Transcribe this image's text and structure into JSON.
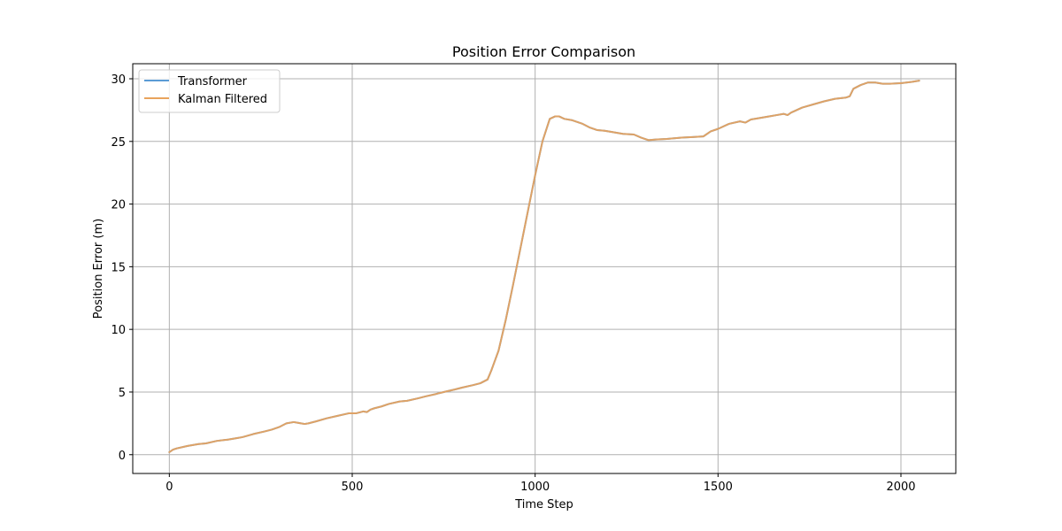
{
  "chart_data": {
    "type": "line",
    "title": "Position Error Comparison",
    "xlabel": "Time Step",
    "ylabel": "Position Error (m)",
    "xlim": [
      -100,
      2150
    ],
    "ylim": [
      -1.5,
      31.2
    ],
    "xticks": [
      0,
      500,
      1000,
      1500,
      2000
    ],
    "yticks": [
      0,
      5,
      10,
      15,
      20,
      25,
      30
    ],
    "grid": true,
    "legend_position": "top-left",
    "series": [
      {
        "name": "Transformer",
        "color": "#5b9bd5",
        "x": [
          0,
          10,
          20,
          50,
          80,
          100,
          130,
          160,
          180,
          200,
          230,
          260,
          280,
          300,
          320,
          340,
          350,
          360,
          370,
          380,
          400,
          430,
          460,
          490,
          510,
          530,
          540,
          550,
          560,
          580,
          600,
          630,
          650,
          680,
          700,
          730,
          750,
          780,
          800,
          830,
          850,
          870,
          880,
          890,
          900,
          920,
          940,
          960,
          980,
          1000,
          1020,
          1040,
          1055,
          1065,
          1080,
          1100,
          1130,
          1150,
          1170,
          1190,
          1210,
          1240,
          1270,
          1290,
          1310,
          1330,
          1360,
          1400,
          1430,
          1460,
          1480,
          1500,
          1530,
          1560,
          1575,
          1590,
          1610,
          1640,
          1660,
          1680,
          1690,
          1700,
          1730,
          1760,
          1790,
          1820,
          1850,
          1860,
          1870,
          1890,
          1910,
          1930,
          1950,
          1970,
          2000,
          2030,
          2050
        ],
        "values": [
          0.2,
          0.4,
          0.5,
          0.7,
          0.85,
          0.9,
          1.1,
          1.2,
          1.3,
          1.4,
          1.65,
          1.85,
          2.0,
          2.2,
          2.5,
          2.6,
          2.55,
          2.5,
          2.45,
          2.5,
          2.65,
          2.9,
          3.1,
          3.3,
          3.3,
          3.45,
          3.4,
          3.6,
          3.7,
          3.85,
          4.05,
          4.25,
          4.3,
          4.5,
          4.65,
          4.85,
          5.0,
          5.2,
          5.35,
          5.55,
          5.7,
          6.0,
          6.7,
          7.5,
          8.3,
          10.8,
          13.6,
          16.5,
          19.4,
          22.3,
          25.0,
          26.8,
          27.0,
          27.0,
          26.8,
          26.7,
          26.4,
          26.1,
          25.9,
          25.85,
          25.75,
          25.6,
          25.55,
          25.3,
          25.1,
          25.15,
          25.2,
          25.3,
          25.35,
          25.4,
          25.8,
          26.0,
          26.4,
          26.6,
          26.5,
          26.75,
          26.85,
          27.0,
          27.1,
          27.2,
          27.1,
          27.3,
          27.7,
          27.95,
          28.2,
          28.4,
          28.5,
          28.6,
          29.2,
          29.5,
          29.7,
          29.7,
          29.6,
          29.6,
          29.65,
          29.75,
          29.85
        ]
      },
      {
        "name": "Kalman Filtered",
        "color": "#e9a35c",
        "x": [
          0,
          10,
          20,
          50,
          80,
          100,
          130,
          160,
          180,
          200,
          230,
          260,
          280,
          300,
          320,
          340,
          350,
          360,
          370,
          380,
          400,
          430,
          460,
          490,
          510,
          530,
          540,
          550,
          560,
          580,
          600,
          630,
          650,
          680,
          700,
          730,
          750,
          780,
          800,
          830,
          850,
          870,
          880,
          890,
          900,
          920,
          940,
          960,
          980,
          1000,
          1020,
          1040,
          1055,
          1065,
          1080,
          1100,
          1130,
          1150,
          1170,
          1190,
          1210,
          1240,
          1270,
          1290,
          1310,
          1330,
          1360,
          1400,
          1430,
          1460,
          1480,
          1500,
          1530,
          1560,
          1575,
          1590,
          1610,
          1640,
          1660,
          1680,
          1690,
          1700,
          1730,
          1760,
          1790,
          1820,
          1850,
          1860,
          1870,
          1890,
          1910,
          1930,
          1950,
          1970,
          2000,
          2030,
          2050
        ],
        "values": [
          0.2,
          0.4,
          0.5,
          0.7,
          0.85,
          0.9,
          1.1,
          1.2,
          1.3,
          1.4,
          1.65,
          1.85,
          2.0,
          2.2,
          2.5,
          2.6,
          2.55,
          2.5,
          2.45,
          2.5,
          2.65,
          2.9,
          3.1,
          3.3,
          3.3,
          3.45,
          3.4,
          3.6,
          3.7,
          3.85,
          4.05,
          4.25,
          4.3,
          4.5,
          4.65,
          4.85,
          5.0,
          5.2,
          5.35,
          5.55,
          5.7,
          6.0,
          6.7,
          7.5,
          8.3,
          10.8,
          13.6,
          16.5,
          19.4,
          22.3,
          25.0,
          26.8,
          27.0,
          27.0,
          26.8,
          26.7,
          26.4,
          26.1,
          25.9,
          25.85,
          25.75,
          25.6,
          25.55,
          25.3,
          25.1,
          25.15,
          25.2,
          25.3,
          25.35,
          25.4,
          25.8,
          26.0,
          26.4,
          26.6,
          26.5,
          26.75,
          26.85,
          27.0,
          27.1,
          27.2,
          27.1,
          27.3,
          27.7,
          27.95,
          28.2,
          28.4,
          28.5,
          28.6,
          29.2,
          29.5,
          29.7,
          29.7,
          29.6,
          29.6,
          29.65,
          29.75,
          29.85
        ]
      }
    ]
  }
}
